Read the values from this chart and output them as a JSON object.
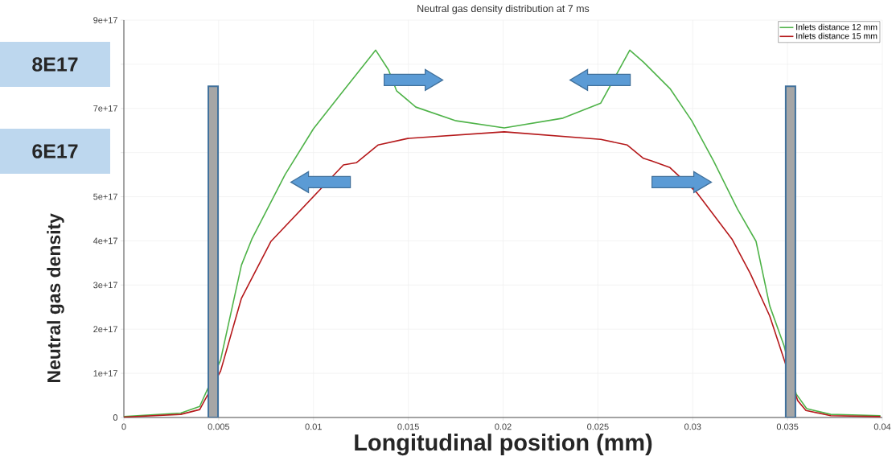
{
  "chart_data": {
    "type": "line",
    "title": "Neutral gas density distribution at 7 ms",
    "xlabel": "Longitudinal position (mm)",
    "ylabel": "Neutral gas density",
    "annotations": [
      "8E17",
      "6E17"
    ],
    "xlim": [
      0,
      0.04
    ],
    "ylim": [
      0,
      9e+17
    ],
    "xticks": [
      0,
      0.005,
      0.01,
      0.015,
      0.02,
      0.025,
      0.03,
      0.035,
      0.04
    ],
    "yticks": [
      {
        "value": 0,
        "label": "0"
      },
      {
        "value": 1e+17,
        "label": "1e+17"
      },
      {
        "value": 2e+17,
        "label": "2e+17"
      },
      {
        "value": 3e+17,
        "label": "3e+17"
      },
      {
        "value": 4e+17,
        "label": "4e+17"
      },
      {
        "value": 5e+17,
        "label": "5e+17"
      },
      {
        "value": 6e+17,
        "label": null
      },
      {
        "value": 7e+17,
        "label": "7e+17"
      },
      {
        "value": 8e+17,
        "label": null
      },
      {
        "value": 9e+17,
        "label": "9e+17"
      }
    ],
    "grid": true,
    "legend": "top right",
    "series": [
      {
        "name": "Inlets distance 12 mm",
        "color": "#4fb349",
        "x": [
          0,
          0.003,
          0.004,
          0.0051,
          0.0062,
          0.00675,
          0.0085,
          0.01,
          0.01158,
          0.01328,
          0.01396,
          0.01438,
          0.0154,
          0.01752,
          0.02006,
          0.02316,
          0.02515,
          0.02668,
          0.0274,
          0.0288,
          0.02995,
          0.0311,
          0.03236,
          0.03334,
          0.03406,
          0.03482,
          0.03546,
          0.03601,
          0.03728,
          0.0399
        ],
        "values": [
          2000000000000000.0,
          1e+16,
          2.5e+16,
          1.3e+17,
          3.45e+17,
          4.04e+17,
          5.5e+17,
          6.54e+17,
          7.4e+17,
          8.32e+17,
          7.87e+17,
          7.4e+17,
          7.03e+17,
          6.72e+17,
          6.56e+17,
          6.78e+17,
          7.12e+17,
          8.32e+17,
          8.05e+17,
          7.45e+17,
          6.72e+17,
          5.81e+17,
          4.72e+17,
          3.99e+17,
          2.53e+17,
          1.62e+17,
          5.3e+16,
          2e+16,
          7000000000000000.0,
          4000000000000000.0
        ]
      },
      {
        "name": "Inlets distance 15 mm",
        "color": "#b5191b",
        "x": [
          0,
          0.003,
          0.004,
          0.0051,
          0.0062,
          0.00776,
          0.01158,
          0.01226,
          0.0134,
          0.01497,
          0.02006,
          0.02515,
          0.02655,
          0.0274,
          0.02783,
          0.0288,
          0.03024,
          0.03207,
          0.03304,
          0.03406,
          0.03482,
          0.03554,
          0.03597,
          0.03728,
          0.0399
        ],
        "values": [
          1000000000000000.0,
          7000000000000000.0,
          1.8e+16,
          1.05e+17,
          2.7e+17,
          3.99e+17,
          5.72e+17,
          5.77e+17,
          6.17e+17,
          6.32e+17,
          6.47e+17,
          6.3e+17,
          6.17e+17,
          5.87e+17,
          5.81e+17,
          5.66e+17,
          5.08e+17,
          4.04e+17,
          3.26e+17,
          2.3e+17,
          1.31e+17,
          3.8e+16,
          1.6e+16,
          4000000000000000.0,
          2000000000000000.0
        ]
      },
      {
        "type": "bar",
        "color": "#a6a6a6",
        "x": [
          0.00471,
          0.03516
        ],
        "values": [
          7.5e+17,
          7.5e+17
        ]
      }
    ]
  }
}
